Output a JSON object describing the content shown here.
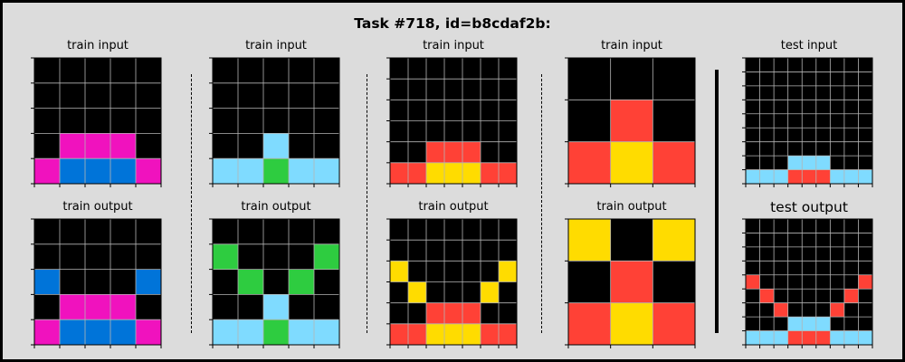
{
  "title": "Task #718, id=b8cdaf2b:",
  "colors": {
    "0": "#000000",
    "1": "#0074D9",
    "2": "#FF4136",
    "3": "#2ECC40",
    "4": "#FFDC00",
    "6": "#F012BE",
    "8": "#7FDBFF",
    "gridline": "#b4b4b4",
    "background": "#dcdcdc"
  },
  "panels": [
    {
      "input_label": "train input",
      "output_label": "train output",
      "input": [
        [
          0,
          0,
          0,
          0,
          0
        ],
        [
          0,
          0,
          0,
          0,
          0
        ],
        [
          0,
          0,
          0,
          0,
          0
        ],
        [
          0,
          6,
          6,
          6,
          0
        ],
        [
          6,
          1,
          1,
          1,
          6
        ]
      ],
      "output": [
        [
          0,
          0,
          0,
          0,
          0
        ],
        [
          0,
          0,
          0,
          0,
          0
        ],
        [
          1,
          0,
          0,
          0,
          1
        ],
        [
          0,
          6,
          6,
          6,
          0
        ],
        [
          6,
          1,
          1,
          1,
          6
        ]
      ]
    },
    {
      "input_label": "train input",
      "output_label": "train output",
      "input": [
        [
          0,
          0,
          0,
          0,
          0
        ],
        [
          0,
          0,
          0,
          0,
          0
        ],
        [
          0,
          0,
          0,
          0,
          0
        ],
        [
          0,
          0,
          8,
          0,
          0
        ],
        [
          8,
          8,
          3,
          8,
          8
        ]
      ],
      "output": [
        [
          0,
          0,
          0,
          0,
          0
        ],
        [
          3,
          0,
          0,
          0,
          3
        ],
        [
          0,
          3,
          0,
          3,
          0
        ],
        [
          0,
          0,
          8,
          0,
          0
        ],
        [
          8,
          8,
          3,
          8,
          8
        ]
      ]
    },
    {
      "input_label": "train input",
      "output_label": "train output",
      "input": [
        [
          0,
          0,
          0,
          0,
          0,
          0,
          0
        ],
        [
          0,
          0,
          0,
          0,
          0,
          0,
          0
        ],
        [
          0,
          0,
          0,
          0,
          0,
          0,
          0
        ],
        [
          0,
          0,
          0,
          0,
          0,
          0,
          0
        ],
        [
          0,
          0,
          2,
          2,
          2,
          0,
          0
        ],
        [
          2,
          2,
          4,
          4,
          4,
          2,
          2
        ]
      ],
      "output": [
        [
          0,
          0,
          0,
          0,
          0,
          0,
          0
        ],
        [
          0,
          0,
          0,
          0,
          0,
          0,
          0
        ],
        [
          4,
          0,
          0,
          0,
          0,
          0,
          4
        ],
        [
          0,
          4,
          0,
          0,
          0,
          4,
          0
        ],
        [
          0,
          0,
          2,
          2,
          2,
          0,
          0
        ],
        [
          2,
          2,
          4,
          4,
          4,
          2,
          2
        ]
      ]
    },
    {
      "input_label": "train input",
      "output_label": "train output",
      "input": [
        [
          0,
          0,
          0
        ],
        [
          0,
          2,
          0
        ],
        [
          2,
          4,
          2
        ]
      ],
      "output": [
        [
          4,
          0,
          4
        ],
        [
          0,
          2,
          0
        ],
        [
          2,
          4,
          2
        ]
      ]
    }
  ],
  "test": {
    "input_label": "test input",
    "output_label": "test output",
    "input": [
      [
        0,
        0,
        0,
        0,
        0,
        0,
        0,
        0,
        0
      ],
      [
        0,
        0,
        0,
        0,
        0,
        0,
        0,
        0,
        0
      ],
      [
        0,
        0,
        0,
        0,
        0,
        0,
        0,
        0,
        0
      ],
      [
        0,
        0,
        0,
        0,
        0,
        0,
        0,
        0,
        0
      ],
      [
        0,
        0,
        0,
        0,
        0,
        0,
        0,
        0,
        0
      ],
      [
        0,
        0,
        0,
        0,
        0,
        0,
        0,
        0,
        0
      ],
      [
        0,
        0,
        0,
        0,
        0,
        0,
        0,
        0,
        0
      ],
      [
        0,
        0,
        0,
        8,
        8,
        8,
        0,
        0,
        0
      ],
      [
        8,
        8,
        8,
        2,
        2,
        2,
        8,
        8,
        8
      ]
    ],
    "output": [
      [
        0,
        0,
        0,
        0,
        0,
        0,
        0,
        0,
        0
      ],
      [
        0,
        0,
        0,
        0,
        0,
        0,
        0,
        0,
        0
      ],
      [
        0,
        0,
        0,
        0,
        0,
        0,
        0,
        0,
        0
      ],
      [
        0,
        0,
        0,
        0,
        0,
        0,
        0,
        0,
        0
      ],
      [
        2,
        0,
        0,
        0,
        0,
        0,
        0,
        0,
        2
      ],
      [
        0,
        2,
        0,
        0,
        0,
        0,
        0,
        2,
        0
      ],
      [
        0,
        0,
        2,
        0,
        0,
        0,
        2,
        0,
        0
      ],
      [
        0,
        0,
        0,
        8,
        8,
        8,
        0,
        0,
        0
      ],
      [
        8,
        8,
        8,
        2,
        2,
        2,
        8,
        8,
        8
      ]
    ]
  }
}
